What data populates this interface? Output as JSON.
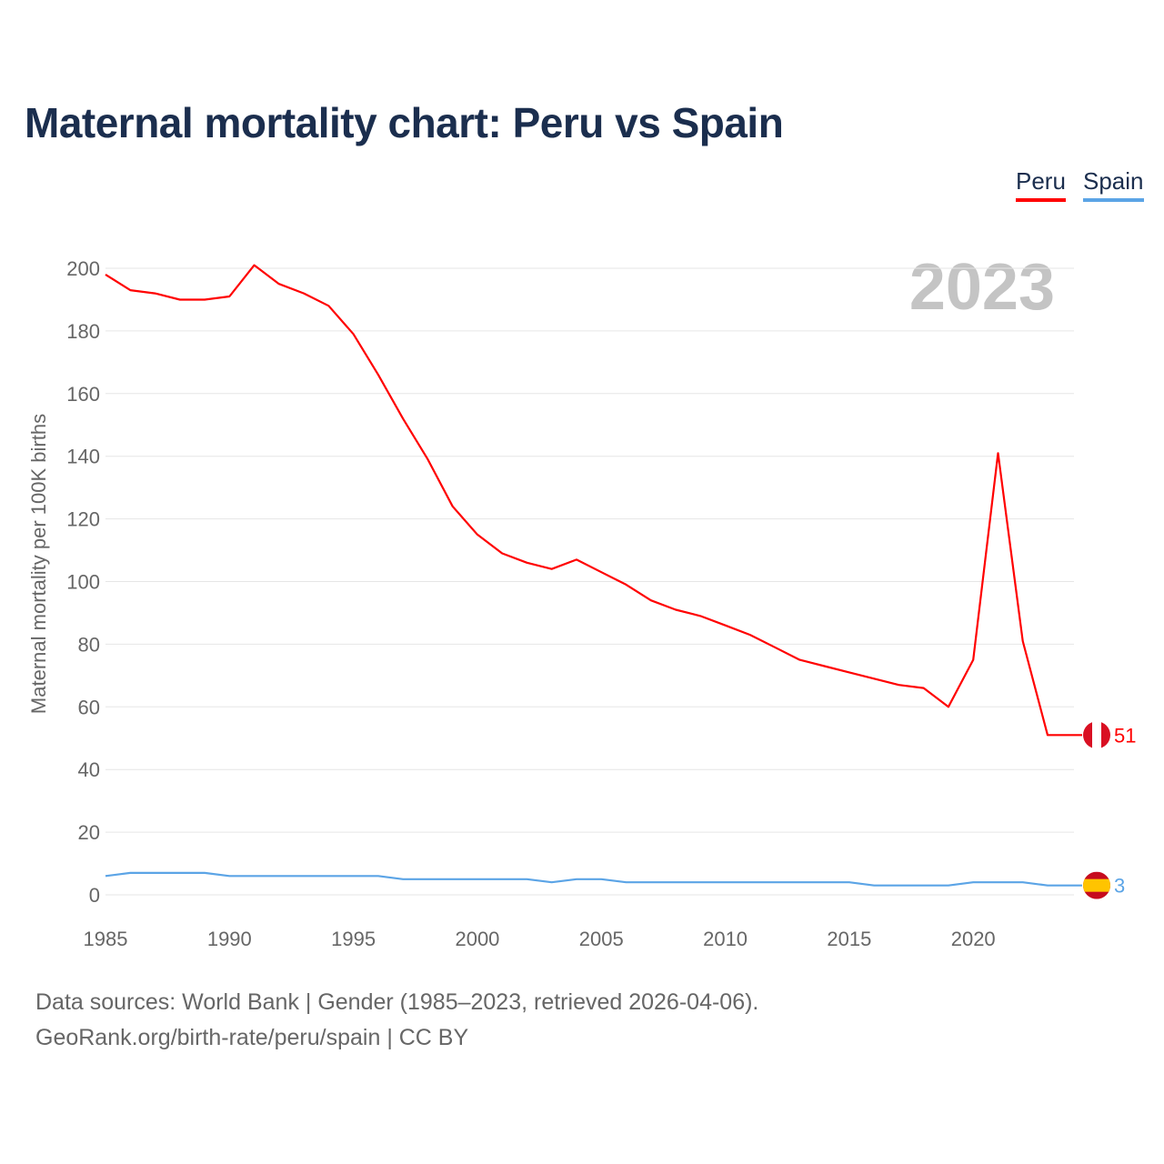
{
  "chart_data": {
    "type": "line",
    "title": "Maternal mortality chart: Peru vs Spain",
    "ylabel": "Maternal mortality per 100K births",
    "xlabel": "",
    "year_watermark": "2023",
    "ylim": [
      0,
      200
    ],
    "xlim": [
      1985,
      2023
    ],
    "yticks": [
      0,
      20,
      40,
      60,
      80,
      100,
      120,
      140,
      160,
      180,
      200
    ],
    "xticks": [
      1985,
      1990,
      1995,
      2000,
      2005,
      2010,
      2015,
      2020
    ],
    "grid": true,
    "legend_position": "top-right",
    "x": [
      1985,
      1986,
      1987,
      1988,
      1989,
      1990,
      1991,
      1992,
      1993,
      1994,
      1995,
      1996,
      1997,
      1998,
      1999,
      2000,
      2001,
      2002,
      2003,
      2004,
      2005,
      2006,
      2007,
      2008,
      2009,
      2010,
      2011,
      2012,
      2013,
      2014,
      2015,
      2016,
      2017,
      2018,
      2019,
      2020,
      2021,
      2022,
      2023
    ],
    "series": [
      {
        "name": "Peru",
        "color": "#ff0000",
        "end_label": "51",
        "values": [
          198,
          193,
          192,
          190,
          190,
          191,
          201,
          195,
          192,
          188,
          179,
          166,
          152,
          139,
          124,
          115,
          109,
          106,
          104,
          107,
          103,
          99,
          94,
          91,
          89,
          86,
          83,
          79,
          75,
          73,
          71,
          69,
          67,
          66,
          60,
          75,
          141,
          81,
          51
        ]
      },
      {
        "name": "Spain",
        "color": "#5ba4e6",
        "end_label": "3",
        "values": [
          6,
          7,
          7,
          7,
          7,
          6,
          6,
          6,
          6,
          6,
          6,
          6,
          5,
          5,
          5,
          5,
          5,
          5,
          4,
          5,
          5,
          4,
          4,
          4,
          4,
          4,
          4,
          4,
          4,
          4,
          4,
          3,
          3,
          3,
          3,
          4,
          4,
          4,
          3
        ]
      }
    ]
  },
  "footer": {
    "line1": "Data sources: World Bank | Gender (1985–2023, retrieved 2026-04-06).",
    "line2": "GeoRank.org/birth-rate/peru/spain | CC BY"
  }
}
